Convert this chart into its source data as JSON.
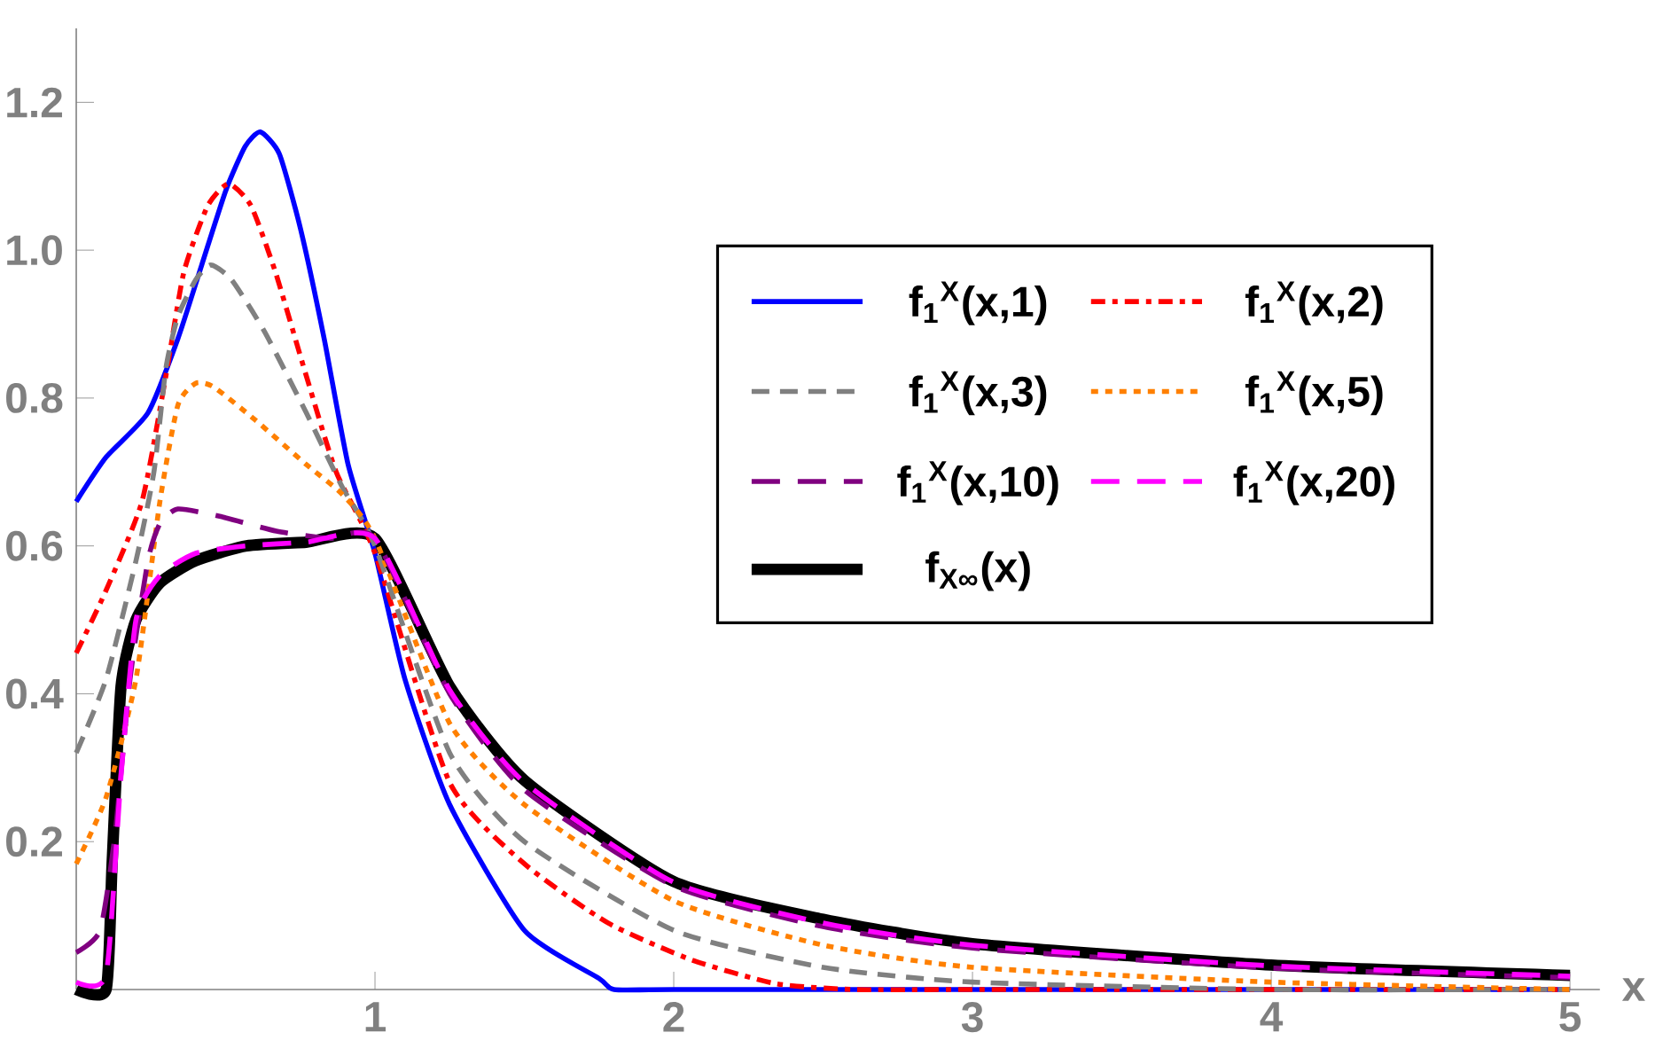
{
  "chart_data": {
    "type": "line",
    "xlabel": "x",
    "xlim": [
      0,
      5.1
    ],
    "ylim": [
      0,
      1.3
    ],
    "xticks": [
      1,
      2,
      3,
      4,
      5
    ],
    "yticks": [
      0.2,
      0.4,
      0.6,
      0.8,
      {
        "value": 1.0,
        "label": "1.0"
      },
      1.2
    ],
    "legend": "right",
    "grid": false,
    "series": [
      {
        "name": "f$_{1}$$^{X}$(x,1)",
        "color": "#0000ff",
        "line_style": "solid",
        "x": [
          0,
          0.1,
          0.24,
          0.34,
          0.42,
          0.5,
          0.565,
          0.616,
          0.68,
          0.75,
          0.83,
          0.91,
          1.0,
          1.1,
          1.25,
          1.5,
          1.75,
          1.8,
          2,
          3,
          4,
          5
        ],
        "values": [
          0.66,
          0.72,
          0.78,
          0.88,
          0.98,
          1.08,
          1.14,
          1.16,
          1.13,
          1.03,
          0.88,
          0.71,
          0.59,
          0.42,
          0.25,
          0.08,
          0.015,
          0,
          0,
          0,
          0,
          0
        ]
      },
      {
        "name": "f$_{1}$$^{X}$(x,2)",
        "color": "#ff0000",
        "line_style": "dashdot",
        "x": [
          0,
          0.1,
          0.22,
          0.3,
          0.36,
          0.44,
          0.51,
          0.585,
          0.667,
          0.77,
          0.87,
          1.0,
          1.25,
          1.5,
          1.78,
          2.06,
          2.34,
          2.6,
          3,
          4,
          5
        ],
        "values": [
          0.455,
          0.54,
          0.66,
          0.83,
          0.97,
          1.06,
          1.09,
          1.06,
          0.97,
          0.83,
          0.7,
          0.59,
          0.28,
          0.17,
          0.09,
          0.04,
          0.008,
          0,
          0,
          0,
          0
        ]
      },
      {
        "name": "f$_{1}$$^{X}$(x,3)",
        "color": "#808080",
        "line_style": "dashed",
        "x": [
          0,
          0.1,
          0.2,
          0.26,
          0.3,
          0.34,
          0.4,
          0.45,
          0.52,
          0.63,
          0.77,
          0.89,
          1.0,
          1.25,
          1.5,
          2,
          2.5,
          3,
          4,
          5
        ],
        "values": [
          0.32,
          0.42,
          0.58,
          0.7,
          0.84,
          0.91,
          0.96,
          0.98,
          0.96,
          0.89,
          0.78,
          0.68,
          0.6,
          0.32,
          0.2,
          0.08,
          0.03,
          0.01,
          0,
          0
        ]
      },
      {
        "name": "f$_{1}$$^{X}$(x,5)",
        "color": "#ff8000",
        "line_style": "dotted",
        "x": [
          0,
          0.1,
          0.2,
          0.28,
          0.34,
          0.4,
          0.46,
          0.6,
          0.77,
          0.89,
          1.0,
          1.25,
          1.5,
          2,
          2.5,
          3,
          4,
          5
        ],
        "values": [
          0.17,
          0.26,
          0.42,
          0.66,
          0.79,
          0.82,
          0.815,
          0.77,
          0.71,
          0.67,
          0.61,
          0.36,
          0.25,
          0.12,
          0.06,
          0.03,
          0.01,
          0
        ]
      },
      {
        "name": "f$_{1}$$^{X}$(x,10)",
        "color": "#800080",
        "line_style": "longdashed",
        "x": [
          0,
          0.08,
          0.13,
          0.18,
          0.24,
          0.28,
          0.34,
          0.48,
          0.67,
          0.85,
          1.0,
          1.25,
          1.5,
          2,
          2.5,
          3,
          4,
          5
        ],
        "values": [
          0.05,
          0.08,
          0.21,
          0.42,
          0.58,
          0.63,
          0.65,
          0.64,
          0.62,
          0.61,
          0.61,
          0.4,
          0.27,
          0.14,
          0.085,
          0.056,
          0.029,
          0.016
        ]
      },
      {
        "name": "f$_{1}$$^{X}$(x,20)",
        "color": "#ff00ff",
        "line_style": "longdashed",
        "x": [
          0,
          0.1,
          0.15,
          0.2,
          0.28,
          0.4,
          0.57,
          0.77,
          1.0,
          1.25,
          1.5,
          2,
          2.5,
          3,
          4,
          5
        ],
        "values": [
          0.01,
          0.02,
          0.29,
          0.5,
          0.56,
          0.59,
          0.6,
          0.605,
          0.61,
          0.405,
          0.28,
          0.145,
          0.09,
          0.06,
          0.032,
          0.018
        ]
      },
      {
        "name": "f$_{X∞}$(x)",
        "color": "#000000",
        "line_style": "solid",
        "x": [
          0,
          0.1,
          0.12,
          0.15,
          0.2,
          0.28,
          0.4,
          0.57,
          0.77,
          1.0,
          1.25,
          1.5,
          2,
          2.5,
          3,
          4,
          5
        ],
        "values": [
          0,
          0,
          0.17,
          0.41,
          0.5,
          0.55,
          0.58,
          0.6,
          0.605,
          0.61,
          0.41,
          0.283,
          0.146,
          0.095,
          0.062,
          0.033,
          0.019
        ]
      }
    ]
  }
}
